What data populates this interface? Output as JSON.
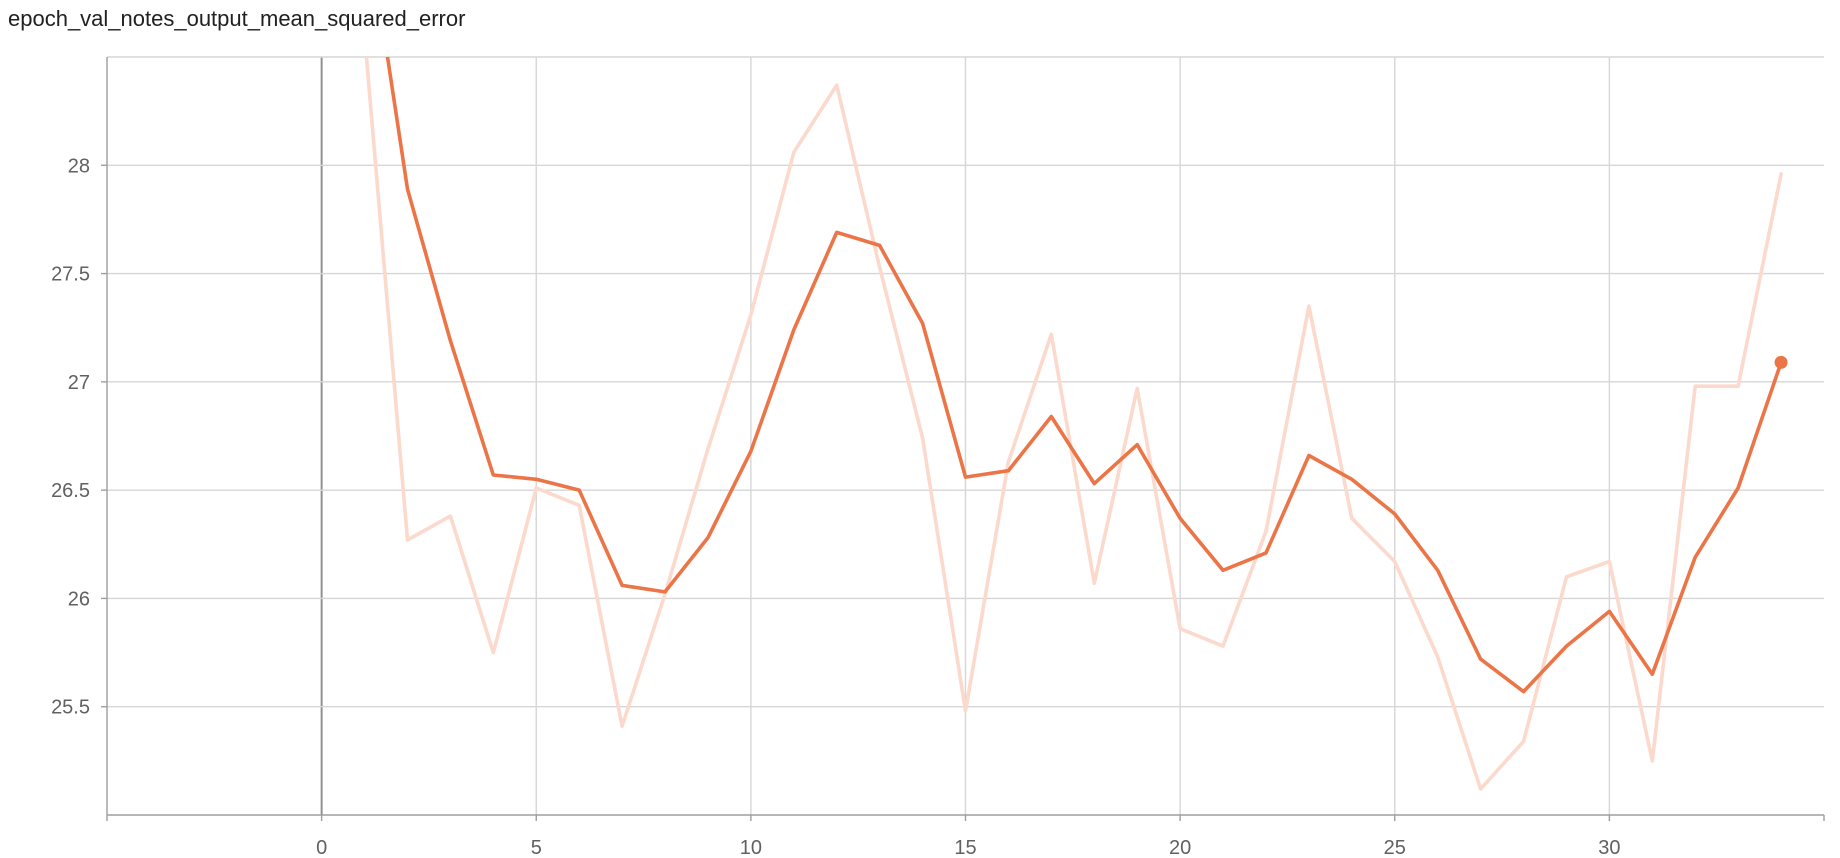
{
  "chart_data": {
    "type": "line",
    "title": "epoch_val_notes_output_mean_squared_error",
    "xlabel": "",
    "ylabel": "",
    "xlim": [
      -5,
      35
    ],
    "ylim": [
      25,
      28.5
    ],
    "x_ticks": [
      0,
      5,
      10,
      15,
      20,
      25,
      30
    ],
    "y_ticks": [
      25.5,
      26,
      26.5,
      27,
      27.5,
      28
    ],
    "grid": true,
    "legend": "none",
    "series": [
      {
        "role": "raw",
        "color": "#fbd9cc",
        "x": [
          1,
          2,
          3,
          4,
          5,
          6,
          7,
          8,
          9,
          10,
          11,
          12,
          13,
          14,
          15,
          16,
          17,
          18,
          19,
          20,
          21,
          22,
          23,
          24,
          25,
          26,
          27,
          28,
          29,
          30,
          31,
          32,
          33,
          34
        ],
        "y": [
          28.6,
          26.27,
          26.38,
          25.75,
          26.51,
          26.43,
          25.41,
          26.02,
          26.69,
          27.31,
          28.06,
          28.37,
          27.53,
          26.74,
          25.48,
          26.63,
          27.22,
          26.07,
          26.97,
          25.86,
          25.78,
          26.31,
          27.35,
          26.37,
          26.17,
          25.73,
          25.12,
          25.34,
          26.1,
          26.17,
          25.25,
          26.98,
          26.98,
          27.96
        ]
      },
      {
        "role": "smoothed",
        "color": "#eb7547",
        "x": [
          1,
          2,
          3,
          4,
          5,
          6,
          7,
          8,
          9,
          10,
          11,
          12,
          13,
          14,
          15,
          16,
          17,
          18,
          19,
          20,
          21,
          22,
          23,
          24,
          25,
          26,
          27,
          28,
          29,
          30,
          31,
          32,
          33,
          34
        ],
        "y": [
          29.2,
          27.89,
          27.19,
          26.57,
          26.55,
          26.5,
          26.06,
          26.03,
          26.28,
          26.68,
          27.24,
          27.69,
          27.63,
          27.27,
          26.56,
          26.59,
          26.84,
          26.53,
          26.71,
          26.37,
          26.13,
          26.21,
          26.66,
          26.55,
          26.39,
          26.13,
          25.72,
          25.57,
          25.78,
          25.94,
          25.65,
          26.19,
          26.51,
          27.09
        ]
      }
    ],
    "colors": {
      "grid": "#d6d6d6",
      "zero_line": "#909090",
      "axis": "#9e9e9e"
    }
  }
}
